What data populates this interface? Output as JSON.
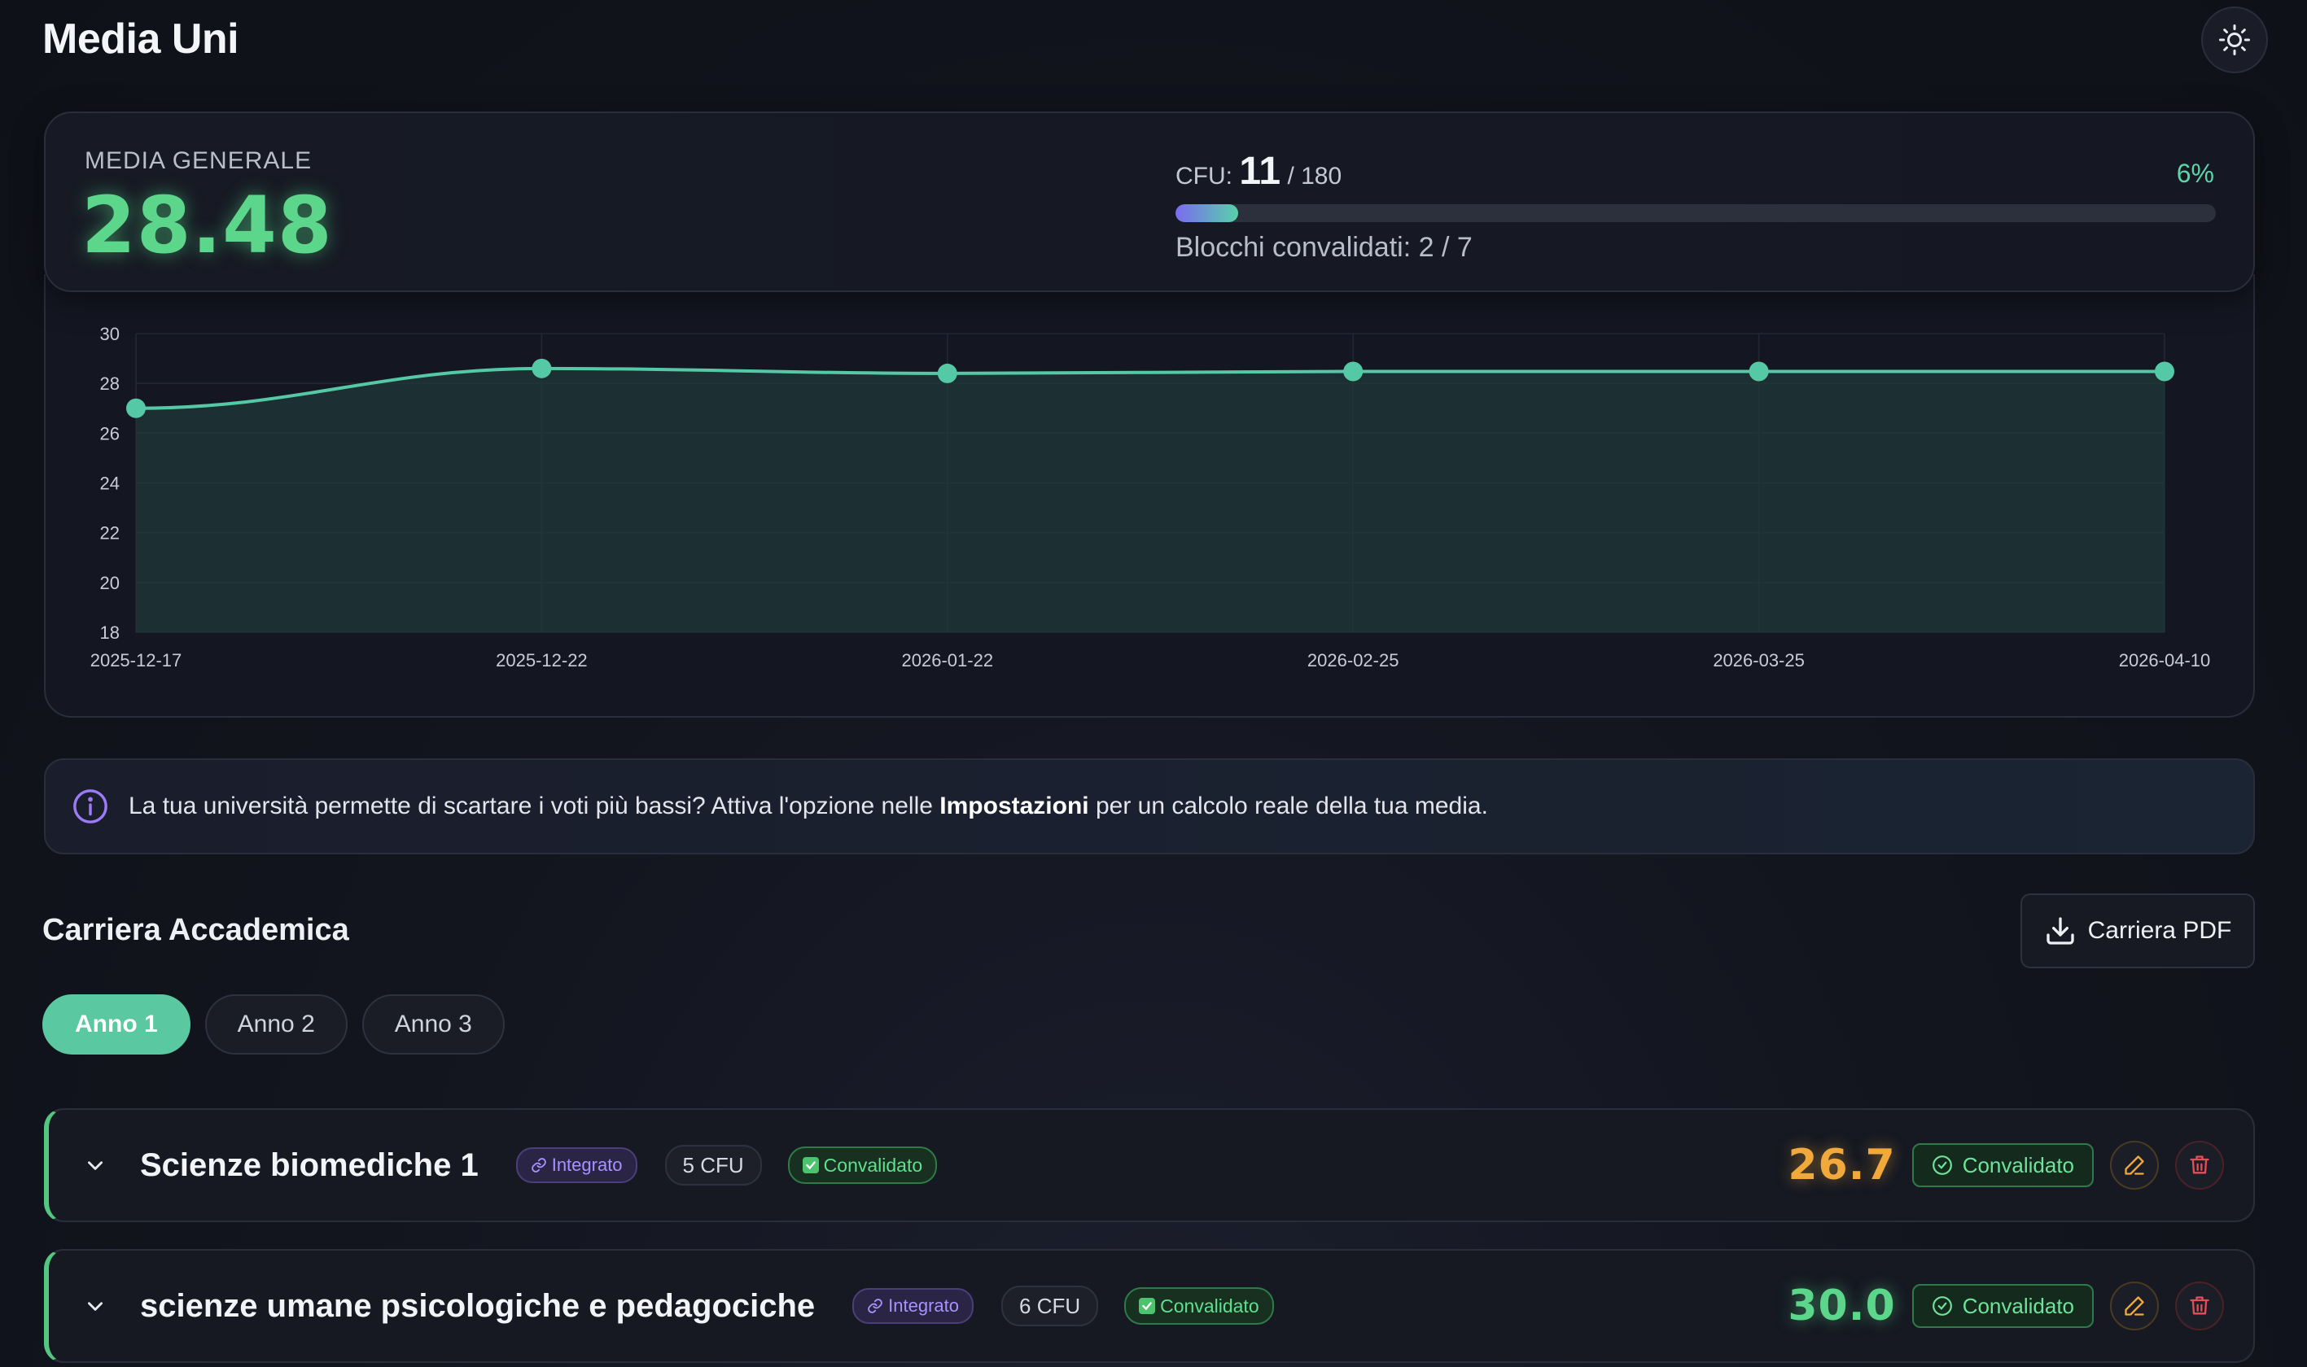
{
  "header": {
    "title": "Media Uni",
    "theme_icon": "sun-icon"
  },
  "summary": {
    "avg_label": "MEDIA GENERALE",
    "avg_value": "28.48",
    "cfu_label": "CFU:",
    "cfu_current": "11",
    "cfu_total": "/ 180",
    "cfu_percent": "6%",
    "cfu_progress": 0.06,
    "blocks_text": "Blocchi convalidati: 2 / 7"
  },
  "chart_data": {
    "type": "area",
    "x": [
      "2025-12-17",
      "2025-12-22",
      "2026-01-22",
      "2026-02-25",
      "2026-03-25",
      "2026-04-10"
    ],
    "series": [
      {
        "values": [
          27.0,
          28.6,
          28.4,
          28.48,
          28.48,
          28.48
        ]
      }
    ],
    "ylim": [
      18,
      30
    ],
    "yticks": [
      30,
      28,
      26,
      24,
      22,
      20,
      18
    ],
    "grid": true,
    "line_color": "#55c9a6",
    "fill_color": "#1f3a3a"
  },
  "info": {
    "text_before": "La tua università permette di scartare i voti più bassi? Attiva l'opzione nelle ",
    "text_bold": "Impostazioni",
    "text_after": " per un calcolo reale della tua media."
  },
  "career": {
    "title": "Carriera Accademica",
    "pdf_button": "Carriera PDF",
    "tabs": [
      "Anno 1",
      "Anno 2",
      "Anno 3"
    ],
    "active_tab": 0
  },
  "courses": [
    {
      "name": "Scienze biomediche 1",
      "tag": "Integrato",
      "cfu": "5 CFU",
      "status": "Convalidato",
      "grade": "26.7",
      "grade_color": "#f2a93b",
      "status_button": "Convalidato"
    },
    {
      "name": "scienze umane psicologiche e pedagociche",
      "tag": "Integrato",
      "cfu": "6 CFU",
      "status": "Convalidato",
      "grade": "30.0",
      "grade_color": "#5cd68a",
      "status_button": "Convalidato"
    }
  ]
}
